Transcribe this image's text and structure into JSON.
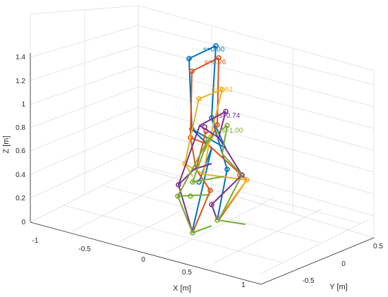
{
  "chart_data": {
    "type": "3d-line",
    "grid": true,
    "axes": {
      "x": {
        "label": "X [m]",
        "ticks": [
          "-1",
          "-0.5",
          "0",
          "0.5",
          "1"
        ]
      },
      "y": {
        "label": "Y [m]",
        "ticks": [
          "-0.5",
          "0",
          "0.5"
        ]
      },
      "z": {
        "label": "Z [m]",
        "ticks": [
          "0",
          "0.2",
          "0.4",
          "0.6",
          "0.8",
          "1",
          "1.2",
          "1.4"
        ]
      }
    },
    "series": [
      {
        "name": "s=0.00",
        "color": "#0072BD"
      },
      {
        "name": "s=0.26",
        "color": "#D95319"
      },
      {
        "name": "s=0.51",
        "color": "#EDB120"
      },
      {
        "name": "s=0.74",
        "color": "#7E2F8E"
      },
      {
        "name": "s=1.00",
        "color": "#77AC30"
      }
    ]
  }
}
